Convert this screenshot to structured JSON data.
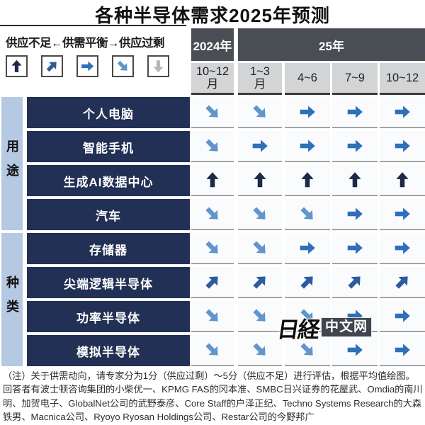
{
  "title": "各种半导体需求2025年预测",
  "legend": {
    "label": "供应不足←供需平衡→供应过剩",
    "items": [
      {
        "name": "legend-arrow-supply-shortage",
        "dir": "up"
      },
      {
        "name": "legend-arrow-shortage-leaning",
        "dir": "up-right"
      },
      {
        "name": "legend-arrow-balanced",
        "dir": "right"
      },
      {
        "name": "legend-arrow-surplus-leaning",
        "dir": "down-right"
      },
      {
        "name": "legend-arrow-supply-surplus",
        "dir": "down"
      }
    ]
  },
  "arrow_colors": {
    "up": "#1e2847",
    "up-right": "#2c5c9d",
    "right": "#2f70ba",
    "down-right": "#6195ce",
    "down": "#b4b8bb"
  },
  "header": {
    "year_groups": [
      {
        "label": "2024年"
      },
      {
        "label": "25年"
      }
    ],
    "quarters": [
      "10~12\n月",
      "1~3\n月",
      "4~6",
      "7~9",
      "10~12"
    ]
  },
  "row_groups": [
    {
      "label": "用途"
    },
    {
      "label": "种类"
    }
  ],
  "chart_data": {
    "type": "table",
    "title": "各种半导体需求2025年预测",
    "columns": [
      "2024年10~12月",
      "25年1~3月",
      "25年4~6",
      "25年7~9",
      "25年10~12"
    ],
    "legend_scale": "供应不足←供需平衡→供应过剩",
    "arrow_meaning": {
      "up": "供应不足",
      "right": "供需平衡",
      "down": "供应过剩"
    },
    "rating_note": "1分(供应过剩)～5分(供应不足)均值",
    "rows": [
      {
        "group": "用途",
        "label": "个人电脑",
        "values": [
          "down-right",
          "down-right",
          "right",
          "right",
          "right"
        ]
      },
      {
        "group": "用途",
        "label": "智能手机",
        "values": [
          "down-right",
          "right",
          "right",
          "right",
          "right"
        ]
      },
      {
        "group": "用途",
        "label": "生成AI数据中心",
        "values": [
          "up",
          "up",
          "up",
          "up",
          "up"
        ]
      },
      {
        "group": "用途",
        "label": "汽车",
        "values": [
          "down-right",
          "down-right",
          "down-right",
          "right",
          "right"
        ]
      },
      {
        "group": "种类",
        "label": "存储器",
        "values": [
          "down-right",
          "down-right",
          "right",
          "right",
          "right"
        ]
      },
      {
        "group": "种类",
        "label": "尖端逻辑半导体",
        "values": [
          "up-right",
          "up-right",
          "up-right",
          "up-right",
          "up-right"
        ]
      },
      {
        "group": "种类",
        "label": "功率半导体",
        "values": [
          "down-right",
          "down-right",
          "down-right",
          "right",
          "right"
        ]
      },
      {
        "group": "种类",
        "label": "模拟半导体",
        "values": [
          "down-right",
          "down-right",
          "down-right",
          "right",
          "right"
        ]
      }
    ]
  },
  "watermark": {
    "main": "日経",
    "sub": "中文网"
  },
  "footnote": "（注）关于供需动向，请专家分为1分（供应过剩）～5分（供应不足）进行评估，根据平均值绘图。回答者有波士顿咨询集团的小柴优一、KPMG FAS的冈本准、SMBC日兴证券的花屋武、Omdia的南川明、加贺电子、GlobalNet公司的武野泰彦、Core Staff的户泽正纪、Techno Systems Research的大森铁男、Macnica公司、Ryoyo Ryosan Holdings公司、Restar公司的今野邦广"
}
